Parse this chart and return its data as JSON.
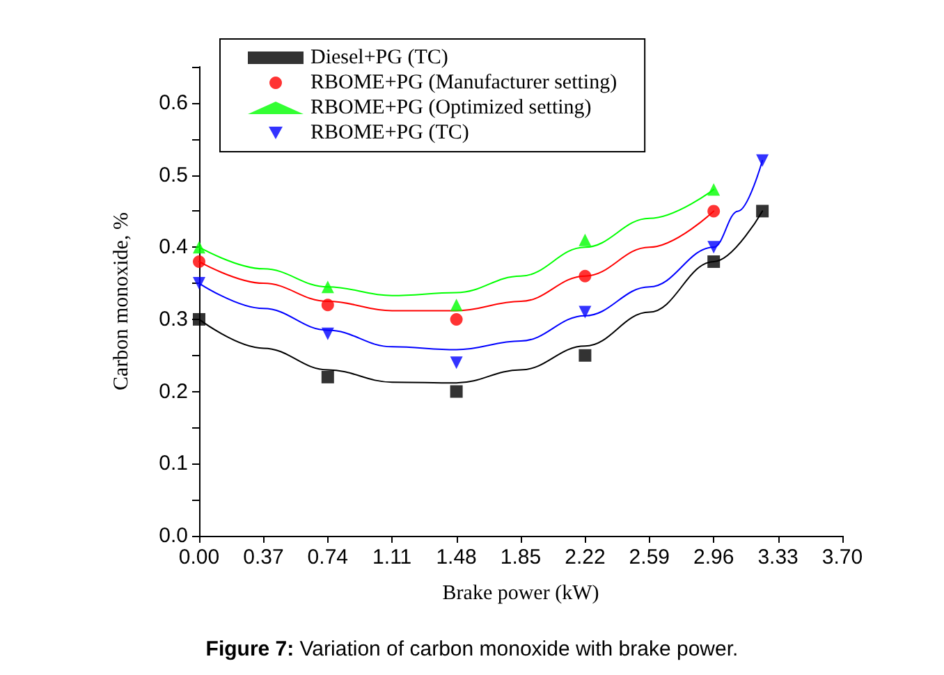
{
  "chart_data": {
    "type": "scatter",
    "xlabel": "Brake power (kW)",
    "ylabel": "Carbon monoxide, %",
    "annotations": [
      "Figure 7: Variation of carbon monoxide with brake power."
    ],
    "xlim": [
      0,
      3.7
    ],
    "xticks": [
      {
        "value": 0,
        "label": "0.00"
      },
      {
        "value": 0.37,
        "label": "0.37"
      },
      {
        "value": 0.74,
        "label": "0.74"
      },
      {
        "value": 1.11,
        "label": "1.11"
      },
      {
        "value": 1.48,
        "label": "1.48"
      },
      {
        "value": 1.85,
        "label": "1.85"
      },
      {
        "value": 2.22,
        "label": "2.22"
      },
      {
        "value": 2.59,
        "label": "2.59"
      },
      {
        "value": 2.96,
        "label": "2.96"
      },
      {
        "value": 3.33,
        "label": "3.33"
      },
      {
        "value": 3.7,
        "label": "3.70"
      }
    ],
    "ylim": [
      0,
      0.65
    ],
    "yticks": [
      {
        "value": 0,
        "label": "0.0"
      },
      {
        "value": 0.05,
        "label": null
      },
      {
        "value": 0.1,
        "label": "0.1"
      },
      {
        "value": 0.15,
        "label": null
      },
      {
        "value": 0.2,
        "label": "0.2"
      },
      {
        "value": 0.25,
        "label": null
      },
      {
        "value": 0.3,
        "label": "0.3"
      },
      {
        "value": 0.35,
        "label": null
      },
      {
        "value": 0.4,
        "label": "0.4"
      },
      {
        "value": 0.45,
        "label": null
      },
      {
        "value": 0.5,
        "label": "0.5"
      },
      {
        "value": 0.55,
        "label": null
      },
      {
        "value": 0.6,
        "label": "0.6"
      },
      {
        "value": 0.65,
        "label": null
      }
    ],
    "grid": false,
    "legend": "top left",
    "series": [
      {
        "name": "Diesel+PG (TC)",
        "color": "#000000",
        "marker": "square",
        "x": [
          0,
          0.74,
          1.48,
          2.22,
          2.96,
          3.24
        ],
        "values": [
          0.3,
          0.22,
          0.2,
          0.25,
          0.38,
          0.45
        ]
      },
      {
        "name": "RBOME+PG (Manufacturer setting)",
        "color": "#ff0000",
        "marker": "circle",
        "x": [
          0,
          0.74,
          1.48,
          2.22,
          2.96
        ],
        "values": [
          0.38,
          0.32,
          0.3,
          0.36,
          0.45
        ]
      },
      {
        "name": "RBOME+PG (Optimized setting)",
        "color": "#00ff00",
        "marker": "triangle",
        "x": [
          0,
          0.74,
          1.48,
          2.22,
          2.96
        ],
        "values": [
          0.4,
          0.345,
          0.32,
          0.41,
          0.48
        ]
      },
      {
        "name": "RBOME+PG (TC)",
        "color": "#0000ff",
        "marker": "triangle-down",
        "x": [
          0,
          0.74,
          1.48,
          2.22,
          2.96,
          3.24
        ],
        "values": [
          0.35,
          0.28,
          0.24,
          0.31,
          0.4,
          0.52
        ]
      },
      {
        "type": "line",
        "color": "#000000",
        "x": [
          0,
          0.37,
          0.74,
          1.11,
          1.48,
          1.85,
          2.22,
          2.59,
          2.96,
          3.24
        ],
        "values": [
          0.3,
          0.26,
          0.23,
          0.213,
          0.212,
          0.23,
          0.263,
          0.31,
          0.38,
          0.45
        ]
      },
      {
        "type": "line",
        "color": "#ff0000",
        "x": [
          0,
          0.37,
          0.74,
          1.11,
          1.48,
          1.85,
          2.22,
          2.59,
          2.96
        ],
        "values": [
          0.38,
          0.35,
          0.325,
          0.312,
          0.312,
          0.325,
          0.36,
          0.4,
          0.45
        ]
      },
      {
        "type": "line",
        "color": "#00ff00",
        "x": [
          0,
          0.37,
          0.74,
          1.11,
          1.48,
          1.85,
          2.22,
          2.59,
          2.96
        ],
        "values": [
          0.4,
          0.37,
          0.345,
          0.333,
          0.337,
          0.36,
          0.4,
          0.44,
          0.48
        ]
      },
      {
        "type": "line",
        "color": "#0000ff",
        "x": [
          0,
          0.37,
          0.74,
          1.11,
          1.48,
          1.85,
          2.22,
          2.59,
          2.96,
          3.1,
          3.24
        ],
        "values": [
          0.35,
          0.315,
          0.285,
          0.262,
          0.258,
          0.27,
          0.305,
          0.345,
          0.4,
          0.45,
          0.52
        ]
      }
    ]
  }
}
